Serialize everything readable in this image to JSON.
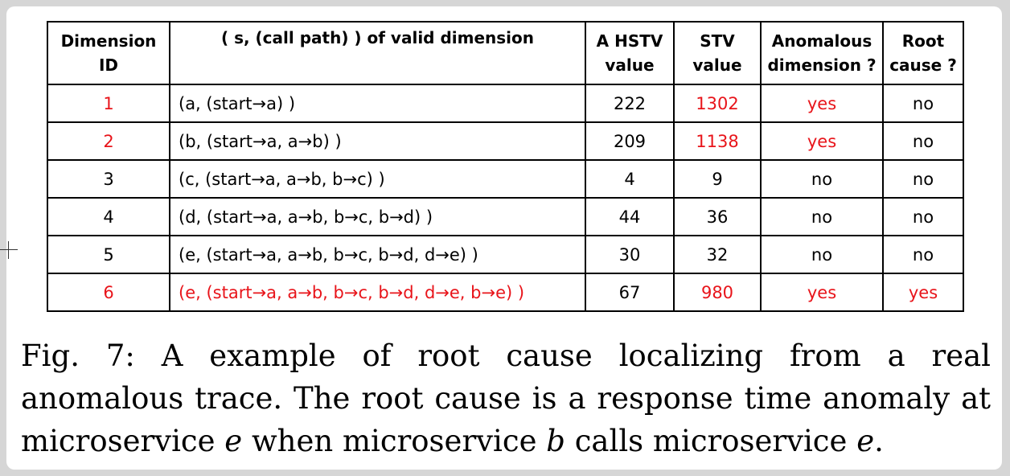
{
  "table": {
    "headers": {
      "dimension_id": [
        "Dimension",
        "ID"
      ],
      "call_path": [
        "( s, (call path) ) of valid dimension",
        ""
      ],
      "a_hstv": [
        "A HSTV",
        "value"
      ],
      "stv": [
        "STV",
        "value"
      ],
      "anomalous": [
        "Anomalous",
        "dimension ?"
      ],
      "root_cause": [
        "Root",
        "cause ?"
      ]
    },
    "rows": [
      {
        "id": "1",
        "path": "(a,  (start→a) )",
        "hstv": "222",
        "stv": "1302",
        "anomalous": "yes",
        "root": "no"
      },
      {
        "id": "2",
        "path": "(b,  (start→a, a→b) )",
        "hstv": "209",
        "stv": "1138",
        "anomalous": "yes",
        "root": "no"
      },
      {
        "id": "3",
        "path": "(c,  (start→a, a→b, b→c) )",
        "hstv": "4",
        "stv": "9",
        "anomalous": "no",
        "root": "no"
      },
      {
        "id": "4",
        "path": "(d, (start→a, a→b, b→c, b→d) )",
        "hstv": "44",
        "stv": "36",
        "anomalous": "no",
        "root": "no"
      },
      {
        "id": "5",
        "path": "(e,  (start→a, a→b, b→c, b→d, d→e) )",
        "hstv": "30",
        "stv": "32",
        "anomalous": "no",
        "root": "no"
      },
      {
        "id": "6",
        "path": "(e,  (start→a, a→b, b→c, b→d, d→e, b→e) )",
        "hstv": "67",
        "stv": "980",
        "anomalous": "yes",
        "root": "yes"
      }
    ]
  },
  "caption": {
    "part1": "Fig. 7: A example of root cause localizing from a real anomalous trace. The root cause is a response time anomaly at microservice ",
    "var_e1": "e",
    "part2": " when microservice ",
    "var_b": "b",
    "part3": " calls microservice ",
    "var_e2": "e",
    "part4": "."
  },
  "colors": {
    "highlight": "#e8141a",
    "text": "#000000"
  }
}
